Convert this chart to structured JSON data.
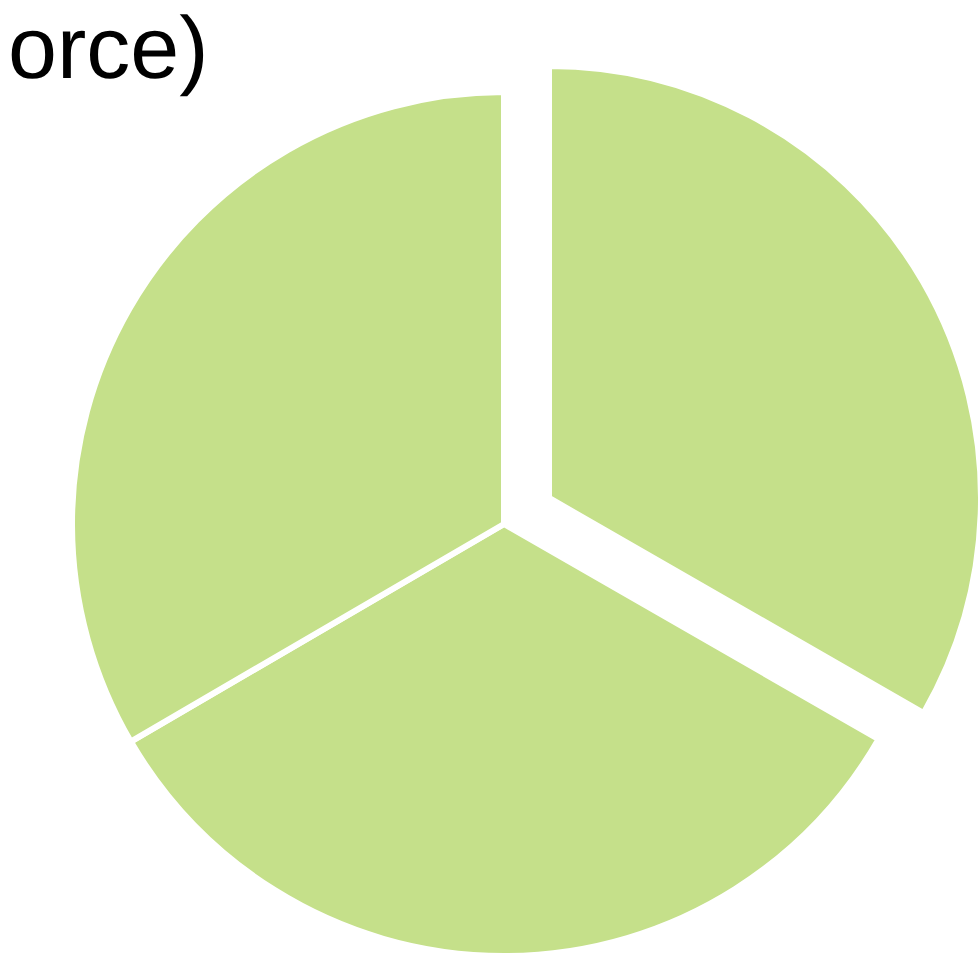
{
  "chart_data": {
    "type": "pie",
    "title": "orce)",
    "categories": [
      null,
      null,
      null
    ],
    "values": [
      33.3,
      33.3,
      33.4
    ],
    "colors": [
      "#c5e08a",
      "#c5e08a",
      "#c5e08a"
    ]
  }
}
